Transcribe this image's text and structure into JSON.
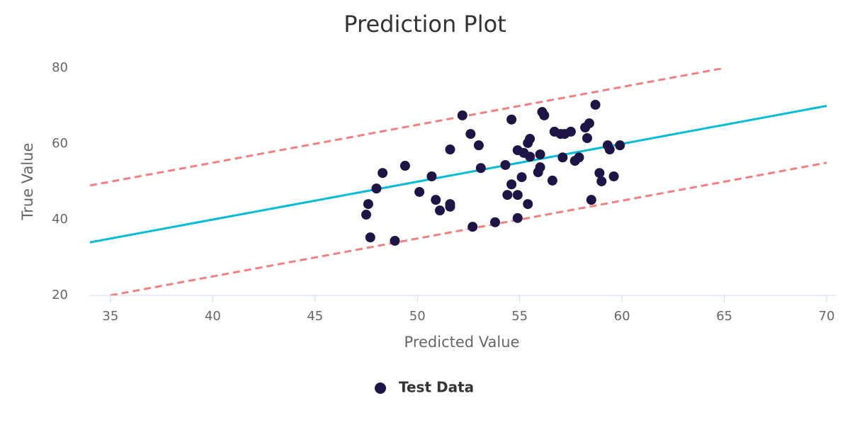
{
  "chart_data": {
    "type": "scatter",
    "title": "Prediction Plot",
    "x_label": "Predicted Value",
    "y_label": "True Value",
    "xlim": [
      34,
      70.45
    ],
    "ylim": [
      20,
      80
    ],
    "xticks": [
      35,
      40,
      45,
      50,
      55,
      60,
      65,
      70
    ],
    "yticks": [
      20,
      40,
      60,
      80
    ],
    "grid": false,
    "legend": "bottom",
    "series": [
      {
        "name": "Test Data",
        "type": "scatter",
        "color": "#1e1446",
        "x": [
          47.5,
          47.6,
          47.7,
          48.0,
          48.3,
          48.9,
          49.4,
          50.1,
          50.7,
          50.9,
          51.1,
          51.6,
          51.6,
          51.6,
          52.2,
          52.6,
          52.7,
          53.0,
          53.1,
          53.8,
          54.3,
          54.4,
          54.6,
          54.6,
          54.9,
          54.9,
          54.9,
          55.1,
          55.2,
          55.4,
          55.4,
          55.5,
          55.5,
          55.9,
          56.0,
          56.0,
          56.1,
          56.2,
          56.6,
          56.7,
          57.0,
          57.1,
          57.2,
          57.5,
          57.7,
          57.9,
          58.2,
          58.3,
          58.4,
          58.5,
          58.7,
          58.9,
          59.0,
          59.3,
          59.4,
          59.6,
          59.9
        ],
        "values": [
          41.3,
          44.1,
          35.3,
          48.2,
          52.3,
          34.4,
          54.2,
          47.3,
          51.4,
          45.2,
          42.4,
          44.1,
          43.4,
          58.5,
          67.5,
          62.6,
          38.1,
          59.6,
          53.6,
          39.3,
          54.4,
          46.5,
          49.3,
          66.4,
          46.5,
          40.4,
          58.3,
          51.2,
          57.6,
          44.1,
          60.2,
          61.3,
          56.6,
          52.5,
          53.8,
          57.2,
          68.4,
          67.5,
          50.3,
          63.2,
          62.6,
          56.4,
          62.6,
          63.2,
          55.5,
          56.4,
          64.3,
          61.5,
          65.4,
          45.2,
          70.3,
          52.3,
          50.1,
          59.6,
          58.5,
          51.4,
          59.6
        ]
      },
      {
        "type": "line",
        "color": "#00bcd4",
        "dashed": false,
        "x": [
          34,
          70
        ],
        "values": [
          34,
          70
        ]
      },
      {
        "type": "line",
        "color": "#f28080",
        "dashed": true,
        "x": [
          34,
          65
        ],
        "values": [
          49,
          80
        ]
      },
      {
        "type": "line",
        "color": "#f28080",
        "dashed": true,
        "x": [
          35,
          70
        ],
        "values": [
          20,
          55
        ]
      }
    ]
  }
}
